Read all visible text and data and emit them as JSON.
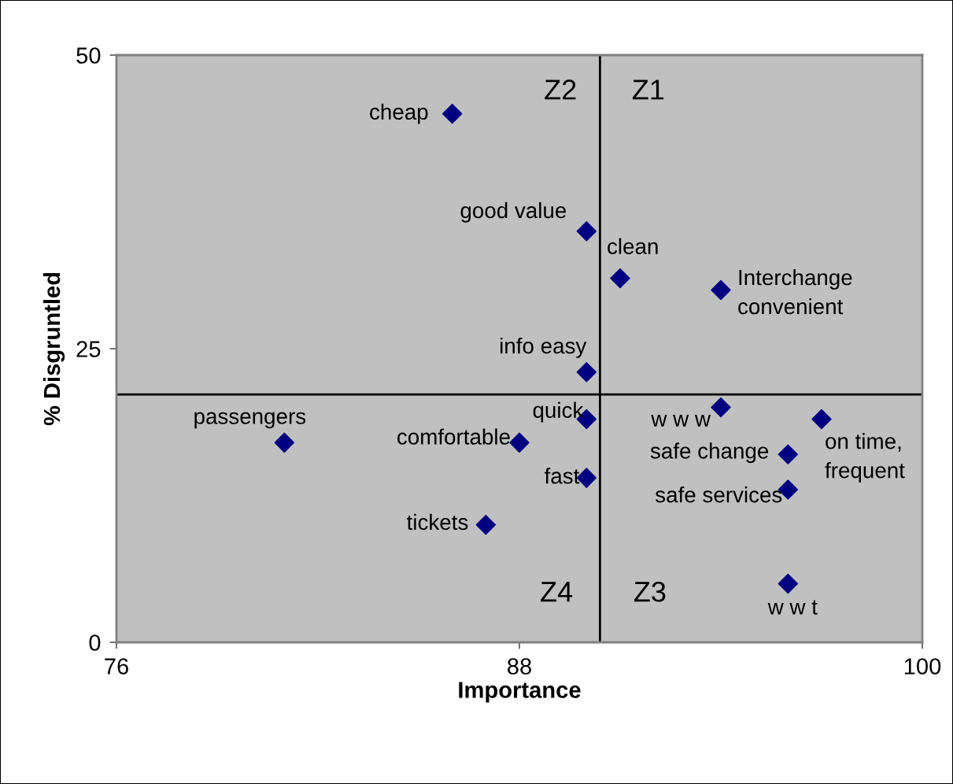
{
  "chart_data": {
    "type": "scatter",
    "xlabel": "Importance",
    "ylabel": "% Disgruntled",
    "x": [
      86,
      90,
      91,
      94,
      90,
      94,
      97,
      90,
      81,
      88,
      96,
      90,
      96,
      87,
      96
    ],
    "series": [
      {
        "color": "#000080",
        "values": [
          45,
          35,
          31,
          30,
          23,
          20,
          19,
          19,
          17,
          17,
          16,
          14,
          13,
          10,
          5
        ]
      }
    ],
    "marker": "diamond",
    "grid": false,
    "legend": false,
    "xlim": [
      76,
      100
    ],
    "xticks": [
      76,
      88,
      100
    ],
    "ylim": [
      0,
      50
    ],
    "yticks": [
      0,
      25,
      50
    ],
    "ref_lines": [
      {
        "axis": "x",
        "value": 90.4,
        "color": "#000000"
      },
      {
        "axis": "y",
        "value": 21.1,
        "color": "#000000"
      }
    ],
    "annotations": [
      {
        "text": "cheap",
        "x": 86,
        "y": 45
      },
      {
        "text": "good value",
        "x": 90,
        "y": 35
      },
      {
        "text": "clean",
        "x": 91,
        "y": 31
      },
      {
        "text": "Interchange\nconvenient",
        "x": 94,
        "y": 30
      },
      {
        "text": "info easy",
        "x": 90,
        "y": 23
      },
      {
        "text": "w w w",
        "x": 94,
        "y": 20
      },
      {
        "text": "on time,\nfrequent",
        "x": 97,
        "y": 19
      },
      {
        "text": "quick",
        "x": 90,
        "y": 19
      },
      {
        "text": "passengers",
        "x": 81,
        "y": 17
      },
      {
        "text": "comfortable",
        "x": 88,
        "y": 17
      },
      {
        "text": "safe change",
        "x": 96,
        "y": 16
      },
      {
        "text": "fast",
        "x": 90,
        "y": 14
      },
      {
        "text": "safe services",
        "x": 96,
        "y": 13
      },
      {
        "text": "tickets",
        "x": 87,
        "y": 10
      },
      {
        "text": "w w t",
        "x": 96,
        "y": 5
      },
      "Z2",
      "Z1",
      "Z4",
      "Z3"
    ]
  }
}
